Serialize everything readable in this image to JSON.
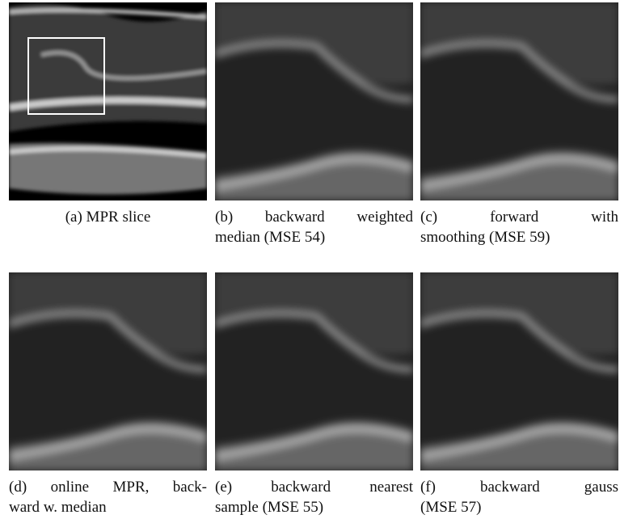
{
  "figure": {
    "panels": [
      {
        "caption": [
          "(a) MPR slice"
        ]
      },
      {
        "caption": [
          "(b) backward weighted",
          "median (MSE 54)"
        ]
      },
      {
        "caption": [
          "(c) forward with",
          "smoothing (MSE 59)"
        ]
      },
      {
        "caption": [
          "(d) online MPR, back-",
          "ward w. median"
        ]
      },
      {
        "caption": [
          "(e) backward nearest",
          "sample (MSE 55)"
        ]
      },
      {
        "caption": [
          "(f) backward gauss",
          "(MSE 57)"
        ]
      }
    ]
  }
}
